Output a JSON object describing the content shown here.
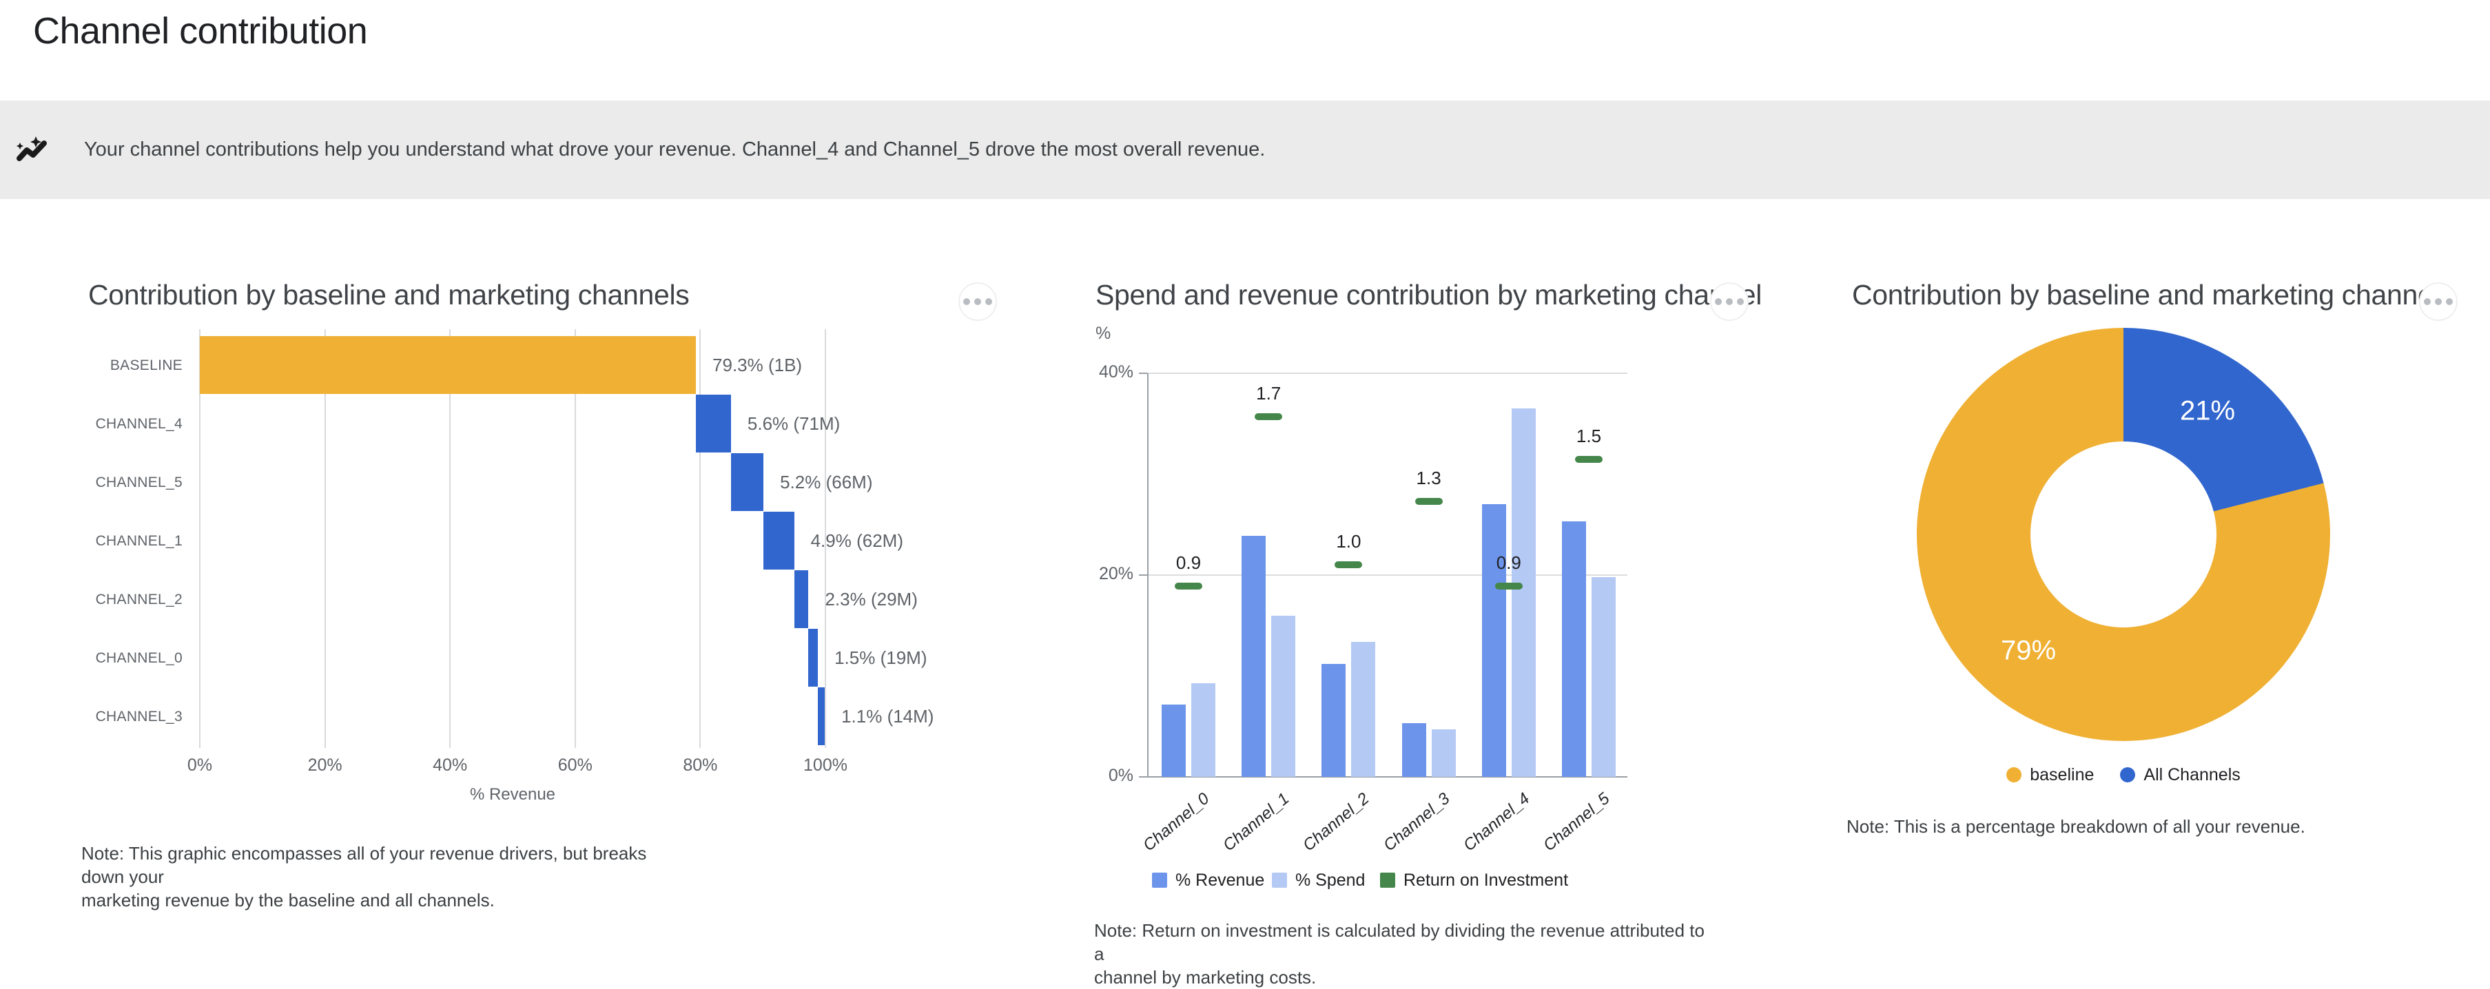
{
  "page": {
    "title": "Channel contribution"
  },
  "banner": {
    "icon": "insights-icon",
    "text": "Your channel contributions help you understand what drove your revenue. Channel_4 and Channel_5 drove the most overall revenue."
  },
  "theme": {
    "banner_bg": "#EBEBEB",
    "title_color": "#202124",
    "chart_title_color": "#3F4347",
    "gridline_color": "#D9DADB",
    "axis_color": "#9AA0A6",
    "muted_text": "#5F6368",
    "menu_dot_color": "#B9BDC1"
  },
  "menus": {
    "more_options_label": "more-options"
  },
  "chart_data": [
    {
      "type": "bar",
      "variant": "horizontal-waterfall",
      "title": "Contribution by baseline and marketing channels",
      "categories": [
        "BASELINE",
        "CHANNEL_4",
        "CHANNEL_5",
        "CHANNEL_1",
        "CHANNEL_2",
        "CHANNEL_0",
        "CHANNEL_3"
      ],
      "values_pct": [
        79.3,
        5.6,
        5.2,
        4.9,
        2.3,
        1.5,
        1.1
      ],
      "bar_labels": [
        "79.3% (1B)",
        "5.6% (71M)",
        "5.2% (66M)",
        "4.9% (62M)",
        "2.3% (29M)",
        "1.5% (19M)",
        "1.1% (14M)"
      ],
      "xlabel": "% Revenue",
      "x_ticks": [
        "0%",
        "20%",
        "40%",
        "60%",
        "80%",
        "100%"
      ],
      "xlim": [
        0,
        100
      ],
      "grid": true,
      "bar_colors": {
        "baseline": "#EFB033",
        "channel": "#3166CE"
      },
      "note": "Note: This graphic encompasses all of your revenue drivers, but breaks down your\nmarketing revenue by the baseline and all channels."
    },
    {
      "type": "bar",
      "variant": "grouped-vertical-with-roi-markers",
      "title": "Spend and revenue contribution by marketing channel",
      "unit_label": "%",
      "categories": [
        "Channel_0",
        "Channel_1",
        "Channel_2",
        "Channel_3",
        "Channel_4",
        "Channel_5"
      ],
      "series": [
        {
          "name": "% Revenue",
          "color": "#6D94EB",
          "values": [
            7.2,
            23.9,
            11.2,
            5.3,
            27.0,
            25.3
          ]
        },
        {
          "name": "% Spend",
          "color": "#B4C9F4",
          "values": [
            9.3,
            16.0,
            13.4,
            4.7,
            36.5,
            19.8
          ]
        },
        {
          "name": "Return on Investment",
          "color": "#45864B",
          "values": [
            0.9,
            1.7,
            1.0,
            1.3,
            0.9,
            1.5
          ],
          "style": "dash-marker",
          "labels": [
            "0.9",
            "1.7",
            "1.0",
            "1.3",
            "0.9",
            "1.5"
          ]
        }
      ],
      "y_ticks": [
        "0%",
        "20%",
        "40%"
      ],
      "ylim": [
        0,
        40
      ],
      "roi_axis_scale": 21,
      "grid": true,
      "legend_position": "bottom",
      "note": "Note: Return on investment is calculated by dividing the revenue attributed to a\nchannel by marketing costs."
    },
    {
      "type": "pie",
      "variant": "donut",
      "title": "Contribution by baseline and marketing channels",
      "labels": [
        "baseline",
        "All Channels"
      ],
      "values_pct": [
        79,
        21
      ],
      "slice_labels": [
        "79%",
        "21%"
      ],
      "colors": [
        "#EFB033",
        "#3166CE"
      ],
      "legend_position": "bottom",
      "note": "Note: This is a percentage breakdown of all your revenue."
    }
  ]
}
